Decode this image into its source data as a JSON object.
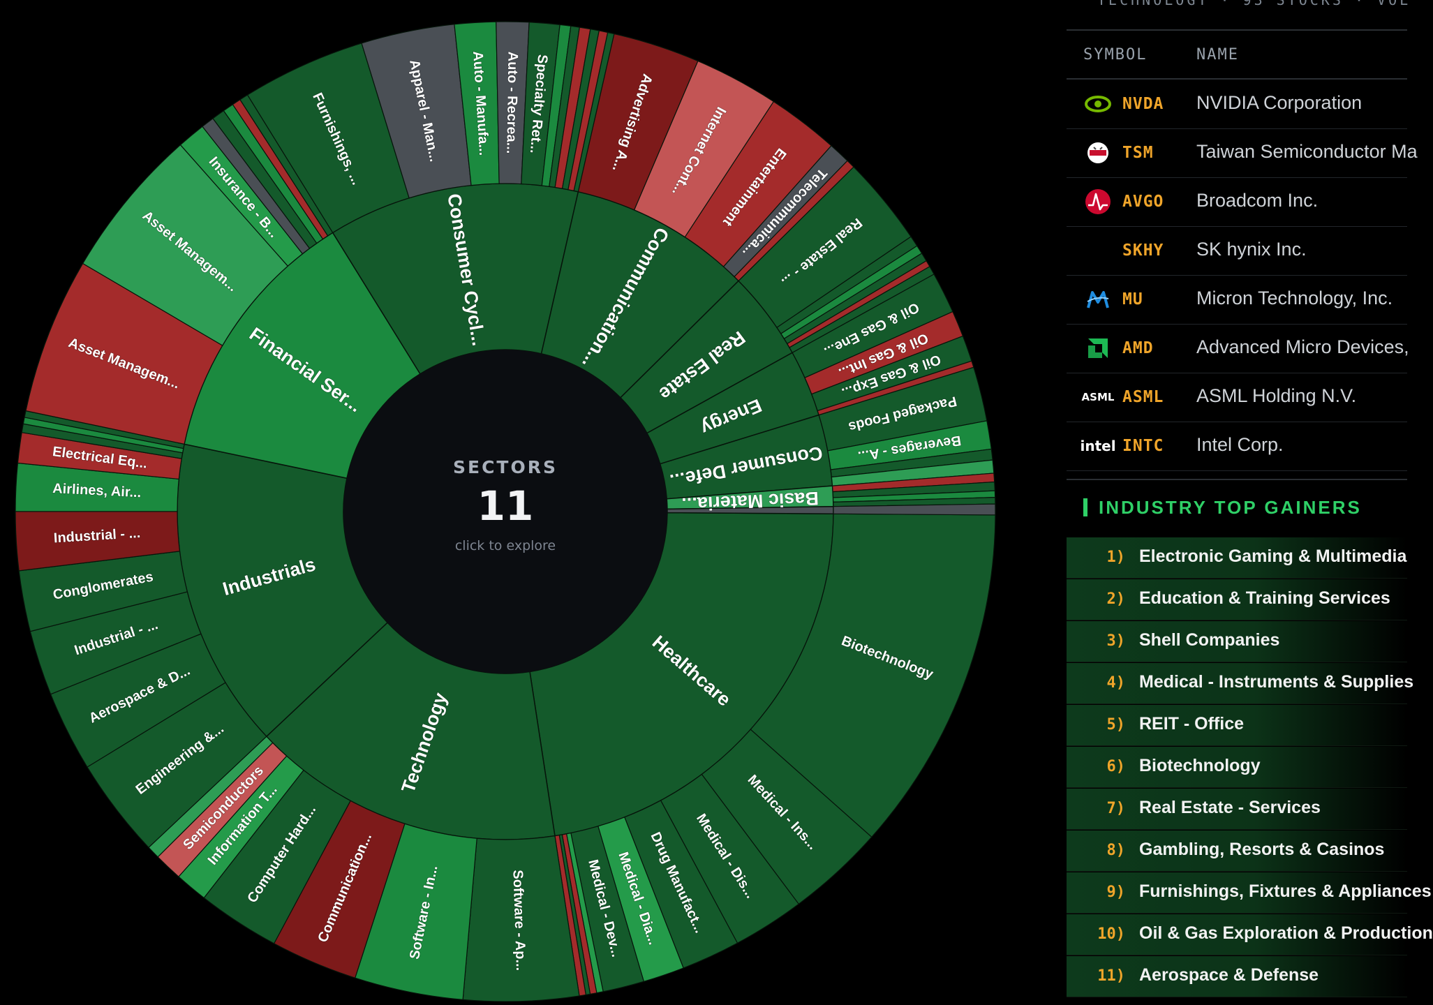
{
  "sunburst": {
    "center": {
      "caption": "SECTORS",
      "count": "11",
      "hint": "click to explore"
    },
    "sectors": [
      {
        "label": "Healthcare",
        "color": "#145a2b",
        "industries": [
          {
            "label": "Biotechnology",
            "color": "#145a2b",
            "w": 16
          },
          {
            "label": "Medical - Ins...",
            "color": "#145a2b",
            "w": 4.5
          },
          {
            "label": "Medical - Dis...",
            "color": "#145a2b",
            "w": 3.3
          },
          {
            "label": "Drug Manufact...",
            "color": "#145a2b",
            "w": 2.7
          },
          {
            "label": "Medical - Dia...",
            "color": "#249b4a",
            "w": 1.9
          },
          {
            "label": "Medical - Dev...",
            "color": "#145a2b",
            "w": 1.9
          },
          {
            "label": "",
            "color": "#249b4a",
            "w": 0.3
          },
          {
            "label": "",
            "color": "#a42b2b",
            "w": 0.3
          },
          {
            "label": "",
            "color": "#145a2b",
            "w": 0.2
          },
          {
            "label": "",
            "color": "#a42b2b",
            "w": 0.3
          }
        ]
      },
      {
        "label": "Technology",
        "color": "#145a2b",
        "industries": [
          {
            "label": "Software - Ap...",
            "color": "#145a2b",
            "w": 5.3
          },
          {
            "label": "Software - In...",
            "color": "#1b8a3f",
            "w": 5
          },
          {
            "label": "Communication...",
            "color": "#7d1a1a",
            "w": 4
          },
          {
            "label": "Computer Hard...",
            "color": "#145a2b",
            "w": 3.8
          },
          {
            "label": "Information T...",
            "color": "#249b4a",
            "w": 1.5
          },
          {
            "label": "Semiconductors",
            "color": "#c35555",
            "w": 1.3
          },
          {
            "label": "",
            "color": "#2e9d55",
            "w": 0.6
          }
        ]
      },
      {
        "label": "Industrials",
        "color": "#145a2b",
        "industries": [
          {
            "label": "Engineering &...",
            "color": "#145a2b",
            "w": 4.6
          },
          {
            "label": "Aerospace & D...",
            "color": "#145a2b",
            "w": 3.7
          },
          {
            "label": "Industrial - ...",
            "color": "#145a2b",
            "w": 3
          },
          {
            "label": "Conglomerates",
            "color": "#145a2b",
            "w": 2.8
          },
          {
            "label": "Industrial - ...",
            "color": "#7d1a1a",
            "w": 2.7
          },
          {
            "label": "Airlines, Air...",
            "color": "#1b8a3f",
            "w": 2.2
          },
          {
            "label": "Electrical Eq...",
            "color": "#a42b2b",
            "w": 1.4
          },
          {
            "label": "",
            "color": "#145a2b",
            "w": 0.4
          },
          {
            "label": "",
            "color": "#1b8a3f",
            "w": 0.3
          },
          {
            "label": "",
            "color": "#145a2b",
            "w": 0.3
          }
        ]
      },
      {
        "label": "Financial Ser...",
        "color": "#1b8a3f",
        "industries": [
          {
            "label": "Asset Managem...",
            "color": "#a42b2b",
            "w": 7.2
          },
          {
            "label": "Asset Managem...",
            "color": "#2e9d55",
            "w": 7
          },
          {
            "label": "Insurance - B...",
            "color": "#249b4a",
            "w": 1.3
          },
          {
            "label": "",
            "color": "#4a4f55",
            "w": 0.6
          },
          {
            "label": "",
            "color": "#145a2b",
            "w": 0.6
          },
          {
            "label": "",
            "color": "#1b8a3f",
            "w": 0.5
          },
          {
            "label": "",
            "color": "#a42b2b",
            "w": 0.4
          },
          {
            "label": "",
            "color": "#145a2b",
            "w": 0.4
          }
        ]
      },
      {
        "label": "Consumer Cycl...",
        "color": "#145a2b",
        "industries": [
          {
            "label": "Furnishings, ...",
            "color": "#145a2b",
            "w": 5.7
          },
          {
            "label": "Apparel - Man...",
            "color": "#4a4f55",
            "w": 4.3
          },
          {
            "label": "Auto - Manufa...",
            "color": "#1b8a3f",
            "w": 1.9
          },
          {
            "label": "Auto - Recrea...",
            "color": "#4a4f55",
            "w": 1.5
          },
          {
            "label": "Specialty Ret...",
            "color": "#145a2b",
            "w": 1.4
          },
          {
            "label": "",
            "color": "#1b8a3f",
            "w": 0.5
          },
          {
            "label": "",
            "color": "#145a2b",
            "w": 0.4
          },
          {
            "label": "",
            "color": "#a42b2b",
            "w": 0.5
          },
          {
            "label": "",
            "color": "#145a2b",
            "w": 0.4
          },
          {
            "label": "",
            "color": "#a42b2b",
            "w": 0.4
          },
          {
            "label": "",
            "color": "#145a2b",
            "w": 0.3
          }
        ]
      },
      {
        "label": "Communication...",
        "color": "#145a2b",
        "industries": [
          {
            "label": "Advertising A...",
            "color": "#7d1a1a",
            "w": 4
          },
          {
            "label": "Internet Cont...",
            "color": "#c35555",
            "w": 3.9
          },
          {
            "label": "Entertainment",
            "color": "#a42b2b",
            "w": 3.3
          },
          {
            "label": "Telecommunica...",
            "color": "#4a4f55",
            "w": 1
          },
          {
            "label": "",
            "color": "#a42b2b",
            "w": 0.4
          }
        ]
      },
      {
        "label": "Real Estate",
        "color": "#145a2b",
        "industries": [
          {
            "label": "Real Estate - ...",
            "color": "#145a2b",
            "w": 4.1
          },
          {
            "label": "",
            "color": "#145a2b",
            "w": 0.5
          },
          {
            "label": "",
            "color": "#1b8a3f",
            "w": 0.4
          },
          {
            "label": "",
            "color": "#145a2b",
            "w": 0.4
          },
          {
            "label": "",
            "color": "#a42b2b",
            "w": 0.3
          },
          {
            "label": "",
            "color": "#145a2b",
            "w": 0.4
          }
        ]
      },
      {
        "label": "Energy",
        "color": "#145a2b",
        "industries": [
          {
            "label": "Oil & Gas Ene...",
            "color": "#145a2b",
            "w": 1.9
          },
          {
            "label": "Oil & Gas Int...",
            "color": "#a42b2b",
            "w": 1.2
          },
          {
            "label": "Oil & Gas Exp...",
            "color": "#145a2b",
            "w": 1.2
          },
          {
            "label": "",
            "color": "#a42b2b",
            "w": 0.3
          }
        ]
      },
      {
        "label": "Consumer Defe...",
        "color": "#145a2b",
        "industries": [
          {
            "label": "Packaged Foods",
            "color": "#145a2b",
            "w": 2.5
          },
          {
            "label": "Beverages - A...",
            "color": "#1b8a3f",
            "w": 1.3
          },
          {
            "label": "",
            "color": "#145a2b",
            "w": 0.5
          },
          {
            "label": "",
            "color": "#2e9d55",
            "w": 0.6
          }
        ]
      },
      {
        "label": "Basic Materia...",
        "color": "#2e9d55",
        "industries": [
          {
            "label": "",
            "color": "#a42b2b",
            "w": 0.4
          },
          {
            "label": "",
            "color": "#145a2b",
            "w": 0.4
          },
          {
            "label": "",
            "color": "#1b8a3f",
            "w": 0.3
          },
          {
            "label": "",
            "color": "#145a2b",
            "w": 0.3
          }
        ]
      },
      {
        "label": "",
        "color": "#4a4f55",
        "industries": [
          {
            "label": "",
            "color": "#4a4f55",
            "w": 0.5
          }
        ]
      }
    ]
  },
  "panel": {
    "top_cut": "TECHNOLOGY · 93 STOCKS · VOL",
    "columns": {
      "symbol": "SYMBOL",
      "name": "NAME"
    },
    "stocks": [
      {
        "symbol": "NVDA",
        "name": "NVIDIA Corporation",
        "logo": "nvidia-eye",
        "logo_color": "#76b900"
      },
      {
        "symbol": "TSM",
        "name": "Taiwan Semiconductor Ma",
        "logo": "tsmc-badge",
        "logo_color": "#c8102e"
      },
      {
        "symbol": "AVGO",
        "name": "Broadcom Inc.",
        "logo": "broadcom-pulse",
        "logo_color": "#cc092f"
      },
      {
        "symbol": "SKHY",
        "name": "SK hynix Inc.",
        "logo": "none",
        "logo_color": "#000000"
      },
      {
        "symbol": "MU",
        "name": "Micron Technology, Inc.",
        "logo": "micron-m",
        "logo_color": "#1f8de0"
      },
      {
        "symbol": "AMD",
        "name": "Advanced Micro Devices,",
        "logo": "amd-arrow",
        "logo_color": "#1db954"
      },
      {
        "symbol": "ASML",
        "name": "ASML Holding N.V.",
        "logo": "asml-word",
        "logo_color": "#ffffff",
        "logo_text": "ASML"
      },
      {
        "symbol": "INTC",
        "name": "Intel Corp.",
        "logo": "intel-word",
        "logo_color": "#ffffff",
        "logo_text": "intel"
      }
    ],
    "gainers_title": "INDUSTRY TOP GAINERS",
    "gainers": [
      {
        "rank": "1)",
        "name": "Electronic Gaming & Multimedia"
      },
      {
        "rank": "2)",
        "name": "Education & Training Services"
      },
      {
        "rank": "3)",
        "name": "Shell Companies"
      },
      {
        "rank": "4)",
        "name": "Medical - Instruments & Supplies"
      },
      {
        "rank": "5)",
        "name": "REIT - Office"
      },
      {
        "rank": "6)",
        "name": "Biotechnology"
      },
      {
        "rank": "7)",
        "name": "Real Estate - Services"
      },
      {
        "rank": "8)",
        "name": "Gambling, Resorts & Casinos"
      },
      {
        "rank": "9)",
        "name": "Furnishings, Fixtures & Appliances"
      },
      {
        "rank": "10)",
        "name": "Oil & Gas Exploration & Production"
      },
      {
        "rank": "11)",
        "name": "Aerospace & Defense"
      }
    ]
  }
}
